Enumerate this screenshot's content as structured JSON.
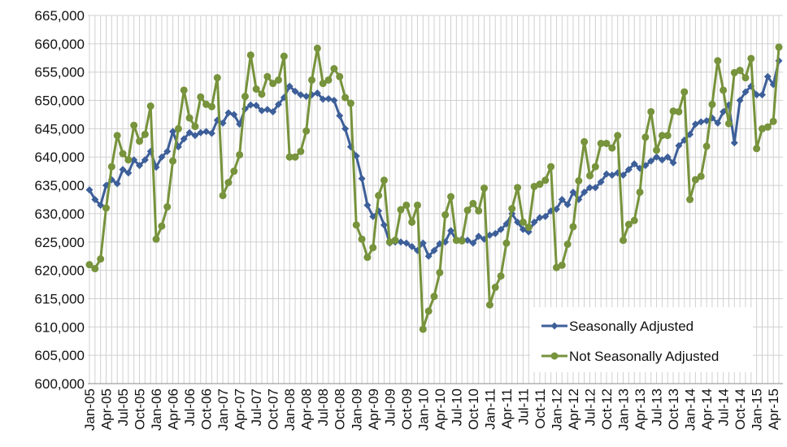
{
  "chart_data": {
    "type": "line",
    "categories": [
      "Jan-05",
      null,
      null,
      "Apr-05",
      null,
      null,
      "Jul-05",
      null,
      null,
      "Oct-05",
      null,
      null,
      "Jan-06",
      null,
      null,
      "Apr-06",
      null,
      null,
      "Jul-06",
      null,
      null,
      "Oct-06",
      null,
      null,
      "Jan-07",
      null,
      null,
      "Apr-07",
      null,
      null,
      "Jul-07",
      null,
      null,
      "Oct-07",
      null,
      null,
      "Jan-08",
      null,
      null,
      "Apr-08",
      null,
      null,
      "Jul-08",
      null,
      null,
      "Oct-08",
      null,
      null,
      "Jan-09",
      null,
      null,
      "Apr-09",
      null,
      null,
      "Jul-09",
      null,
      null,
      "Oct-09",
      null,
      null,
      "Jan-10",
      null,
      null,
      "Apr-10",
      null,
      null,
      "Jul-10",
      null,
      null,
      "Oct-10",
      null,
      null,
      "Jan-11",
      null,
      null,
      "Apr-11",
      null,
      null,
      "Jul-11",
      null,
      null,
      "Oct-11",
      null,
      null,
      "Jan-12",
      null,
      null,
      "Apr-12",
      null,
      null,
      "Jul-12",
      null,
      null,
      "Oct-12",
      null,
      null,
      "Jan-13",
      null,
      null,
      "Apr-13",
      null,
      null,
      "Jul-13",
      null,
      null,
      "Oct-13",
      null,
      null,
      "Jan-14",
      null,
      null,
      "Apr-14",
      null,
      null,
      "Jul-14",
      null,
      null,
      "Oct-14",
      null,
      null,
      "Jan-15",
      null,
      null,
      "Apr-15",
      null
    ],
    "series": [
      {
        "name": "Seasonally Adjusted",
        "color": "#3d5f99",
        "marker": "diamond",
        "values": [
          634200,
          632500,
          631500,
          635000,
          636000,
          635300,
          637800,
          637200,
          639500,
          638500,
          639500,
          641000,
          638200,
          640000,
          641000,
          644500,
          641800,
          643200,
          644300,
          643800,
          644300,
          644500,
          644200,
          646500,
          646000,
          647800,
          647500,
          645800,
          648500,
          649200,
          649100,
          648200,
          648400,
          648000,
          649300,
          650500,
          652500,
          651600,
          651000,
          650700,
          651000,
          651300,
          650200,
          650300,
          650000,
          647300,
          645000,
          641800,
          640200,
          636200,
          631500,
          629500,
          630500,
          628000,
          624800,
          625000,
          625000,
          624800,
          624200,
          623500,
          624800,
          622500,
          623500,
          624700,
          625000,
          627000,
          625300,
          625500,
          625300,
          624800,
          626000,
          625500,
          626200,
          626500,
          627200,
          628200,
          630000,
          628500,
          627200,
          626800,
          628500,
          629300,
          629500,
          630500,
          630800,
          632500,
          631600,
          633800,
          632500,
          633800,
          634600,
          634600,
          635600,
          637000,
          636800,
          637200,
          636800,
          637800,
          638800,
          638000,
          638500,
          639300,
          640000,
          639500,
          640000,
          639000,
          642000,
          643000,
          644000,
          645800,
          646200,
          646400,
          646900,
          646000,
          648000,
          649200,
          642500,
          650000,
          651500,
          652500,
          651000,
          651000,
          654200,
          652800,
          657000
        ]
      },
      {
        "name": "Not Seasonally Adjusted",
        "color": "#77933c",
        "marker": "circle",
        "values": [
          621000,
          620300,
          622000,
          631000,
          638300,
          643800,
          640600,
          639500,
          645600,
          642800,
          644000,
          649000,
          625500,
          627800,
          631200,
          639300,
          645000,
          651800,
          646900,
          645400,
          650600,
          649300,
          648900,
          654000,
          633200,
          635500,
          637500,
          640400,
          650700,
          658000,
          652000,
          651100,
          654200,
          653000,
          653600,
          657800,
          640000,
          640000,
          641000,
          644600,
          653600,
          659200,
          653000,
          653600,
          655600,
          654200,
          650500,
          649500,
          628000,
          625500,
          622300,
          624000,
          633200,
          635900,
          625000,
          625300,
          630700,
          631500,
          628500,
          631500,
          609600,
          612800,
          615400,
          619600,
          629800,
          633000,
          625300,
          625200,
          630600,
          631800,
          630500,
          634500,
          613900,
          617000,
          619000,
          624800,
          630900,
          634600,
          628500,
          627600,
          634800,
          635200,
          635900,
          638300,
          620500,
          620900,
          624600,
          627700,
          635800,
          642700,
          636700,
          638300,
          642400,
          642400,
          641600,
          643800,
          625300,
          628100,
          628800,
          633800,
          643500,
          648000,
          641200,
          643800,
          643800,
          648100,
          648000,
          651500,
          632500,
          636000,
          636600,
          641900,
          649300,
          657000,
          651800,
          645900,
          654900,
          655300,
          654000,
          657400,
          641500,
          645000,
          645300,
          646300,
          659400
        ]
      }
    ],
    "ylim": [
      600000,
      665000
    ],
    "yticks": [
      {
        "value": 600000,
        "label": "600,000"
      },
      {
        "value": 605000,
        "label": "605,000"
      },
      {
        "value": 610000,
        "label": "610,000"
      },
      {
        "value": 615000,
        "label": "615,000"
      },
      {
        "value": 620000,
        "label": "620,000"
      },
      {
        "value": 625000,
        "label": "625,000"
      },
      {
        "value": 630000,
        "label": "630,000"
      },
      {
        "value": 635000,
        "label": "635,000"
      },
      {
        "value": 640000,
        "label": "640,000"
      },
      {
        "value": 645000,
        "label": "645,000"
      },
      {
        "value": 650000,
        "label": "650,000"
      },
      {
        "value": 655000,
        "label": "655,000"
      },
      {
        "value": 660000,
        "label": "660,000"
      },
      {
        "value": 665000,
        "label": "665,000"
      }
    ],
    "grid": true,
    "legend": "lower right"
  }
}
